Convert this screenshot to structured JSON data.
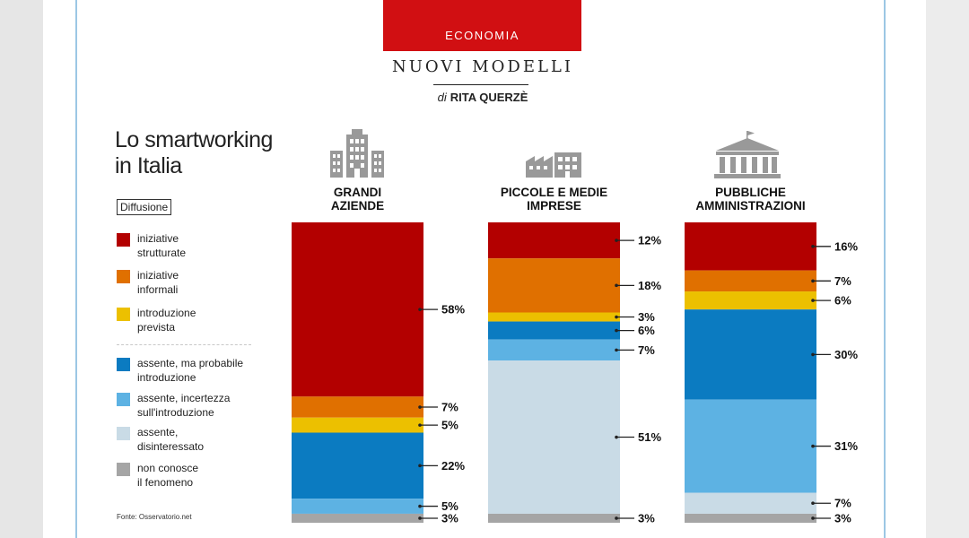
{
  "header": {
    "section": "ECONOMIA",
    "series": "NUOVI MODELLI",
    "byline_prefix": "di",
    "byline_author": "RITA QUERZÈ"
  },
  "legend": {
    "header": "Diffusione",
    "source": "Fonte: Osservatorio.net"
  },
  "colors": {
    "brand_red": "#d10f12",
    "frame_blue": "#9cc7e4"
  },
  "icons": {
    "grandi_aziende": "office-building-icon",
    "pmi": "factory-icon",
    "pa": "government-building-icon"
  },
  "chart_data": {
    "type": "bar",
    "stacked": true,
    "normalized": true,
    "title": "Lo smartworking in Italia",
    "categories": [
      "GRANDI AZIENDE",
      "PICCOLE E MEDIE IMPRESE",
      "PUBBLICHE AMMINISTRAZIONI"
    ],
    "category_lines": [
      [
        "GRANDI",
        "AZIENDE"
      ],
      [
        "PICCOLE E MEDIE",
        "IMPRESE"
      ],
      [
        "PUBBLICHE",
        "AMMINISTRAZIONI"
      ]
    ],
    "unit": "%",
    "series": [
      {
        "name": "iniziative strutturate",
        "lines": [
          "iniziative",
          "strutturate"
        ],
        "color": "#b30000",
        "values": [
          58,
          12,
          16
        ]
      },
      {
        "name": "iniziative informali",
        "lines": [
          "iniziative",
          "informali"
        ],
        "color": "#e07000",
        "values": [
          7,
          18,
          7
        ]
      },
      {
        "name": "introduzione prevista",
        "lines": [
          "introduzione",
          "prevista"
        ],
        "color": "#ecc000",
        "values": [
          5,
          3,
          6
        ]
      },
      {
        "name": "assente, ma probabile introduzione",
        "lines": [
          "assente, ma probabile",
          "introduzione"
        ],
        "color": "#0b7bc1",
        "values": [
          22,
          6,
          30
        ]
      },
      {
        "name": "assente, incertezza sull'introduzione",
        "lines": [
          "assente, incertezza",
          "sull'introduzione"
        ],
        "color": "#5db2e3",
        "values": [
          5,
          7,
          31
        ]
      },
      {
        "name": "assente, disinteressato",
        "lines": [
          "assente,",
          "disinteressato"
        ],
        "color": "#c9dbe6",
        "values": [
          0,
          51,
          7
        ]
      },
      {
        "name": "non conosce il fenomeno",
        "lines": [
          "non conosce",
          "il fenomeno"
        ],
        "color": "#a5a5a5",
        "values": [
          3,
          3,
          3
        ]
      }
    ],
    "legend_position": "left",
    "grid": false
  }
}
